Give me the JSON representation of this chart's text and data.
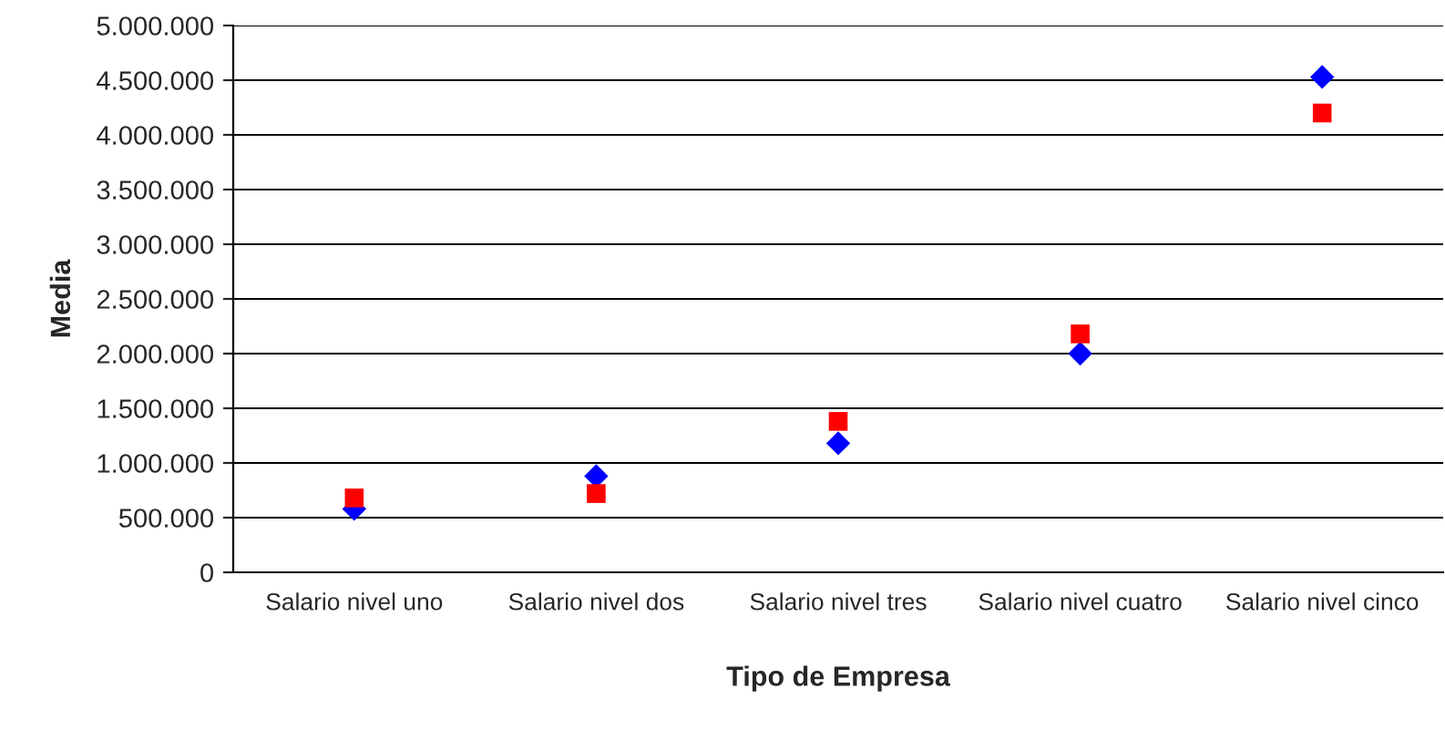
{
  "chart_data": {
    "type": "scatter",
    "xlabel": "Tipo de Empresa",
    "ylabel": "Media",
    "categories": [
      "Salario nivel uno",
      "Salario nivel dos",
      "Salario nivel tres",
      "Salario nivel cuatro",
      "Salario nivel cinco"
    ],
    "series": [
      {
        "color": "#0000ff",
        "marker": "diamond",
        "values": [
          580000,
          880000,
          1180000,
          2000000,
          4530000
        ]
      },
      {
        "color": "#ff0000",
        "marker": "square",
        "values": [
          680000,
          720000,
          1380000,
          2180000,
          4200000
        ]
      }
    ],
    "ylim": [
      0,
      5000000
    ],
    "yticks": [
      0,
      {
        "value": 500000,
        "label": "500.000"
      },
      {
        "value": 1000000,
        "label": "1.000.000"
      },
      {
        "value": 1500000,
        "label": "1.500.000"
      },
      {
        "value": 2000000,
        "label": "2.000.000"
      },
      {
        "value": 2500000,
        "label": "2.500.000"
      },
      {
        "value": 3000000,
        "label": "3.000.000"
      },
      {
        "value": 3500000,
        "label": "3.500.000"
      },
      {
        "value": 4000000,
        "label": "4.000.000"
      },
      {
        "value": 4500000,
        "label": "4.500.000"
      },
      {
        "value": 5000000,
        "label": "5.000.000"
      }
    ],
    "grid": "y",
    "legend": false
  }
}
